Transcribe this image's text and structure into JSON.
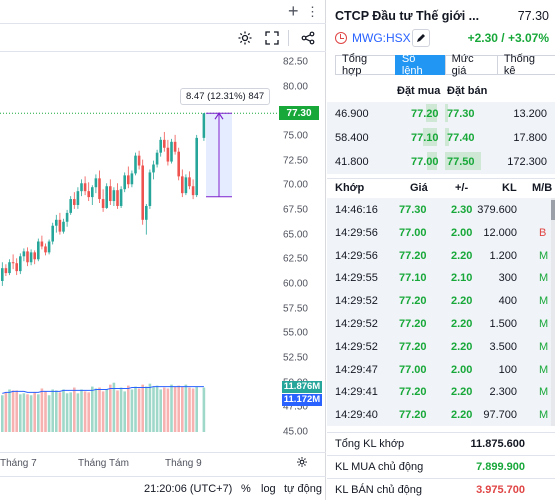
{
  "chart": {
    "toolbar_icons": [
      "settings-icon",
      "fullscreen-icon",
      "share-icon"
    ],
    "price_ticks": [
      "82.50",
      "80.00",
      "77.50",
      "75.00",
      "72.50",
      "70.00",
      "67.50",
      "65.00",
      "62.50",
      "60.00",
      "57.50",
      "55.00",
      "52.50",
      "50.00",
      "47.50",
      "45.00"
    ],
    "last_price_tag": "77.30",
    "volume_tag_1": "11.876M",
    "volume_tag_2": "11.172M",
    "measure_label": "8.47 (12.31%) 847",
    "time_labels": [
      "Tháng 7",
      "Tháng Tám",
      "Tháng 9"
    ],
    "status": {
      "clock": "21:20:06 (UTC+7)",
      "percent": "%",
      "log": "log",
      "auto": "tự động"
    },
    "colors": {
      "up": "#26a69a",
      "down": "#ef5350",
      "accent": "#2962ff",
      "price_tag": "#18a83a",
      "measure": "#7e22ce"
    }
  },
  "chart_data": {
    "type": "candlestick",
    "ylim": [
      45.0,
      83.5
    ],
    "candles": [
      [
        60.3,
        62.2,
        59.8,
        61.6
      ],
      [
        61.6,
        62.0,
        60.8,
        61.1
      ],
      [
        61.1,
        62.5,
        60.9,
        62.2
      ],
      [
        62.2,
        63.0,
        61.5,
        62.1
      ],
      [
        62.1,
        62.6,
        60.9,
        61.3
      ],
      [
        61.3,
        63.1,
        61.0,
        62.8
      ],
      [
        62.8,
        63.6,
        62.3,
        63.3
      ],
      [
        63.3,
        63.7,
        61.8,
        62.2
      ],
      [
        62.2,
        63.5,
        61.9,
        63.2
      ],
      [
        63.2,
        63.4,
        62.0,
        62.5
      ],
      [
        62.5,
        64.6,
        62.3,
        64.3
      ],
      [
        64.3,
        64.9,
        63.5,
        63.8
      ],
      [
        63.8,
        64.1,
        62.9,
        63.2
      ],
      [
        63.2,
        64.5,
        63.0,
        64.3
      ],
      [
        64.3,
        66.2,
        64.0,
        65.9
      ],
      [
        65.9,
        67.0,
        65.2,
        66.5
      ],
      [
        66.5,
        67.2,
        65.0,
        65.3
      ],
      [
        65.3,
        66.6,
        65.1,
        66.3
      ],
      [
        66.3,
        67.5,
        65.8,
        67.2
      ],
      [
        67.2,
        68.9,
        67.0,
        68.6
      ],
      [
        68.6,
        69.3,
        67.6,
        68.0
      ],
      [
        68.0,
        69.8,
        67.6,
        69.4
      ],
      [
        69.4,
        70.6,
        68.9,
        70.2
      ],
      [
        70.2,
        70.9,
        69.0,
        69.4
      ],
      [
        69.4,
        70.3,
        68.4,
        68.8
      ],
      [
        68.8,
        70.0,
        68.0,
        69.8
      ],
      [
        69.8,
        71.1,
        69.2,
        70.7
      ],
      [
        70.7,
        71.5,
        68.2,
        68.6
      ],
      [
        68.6,
        69.6,
        67.3,
        67.7
      ],
      [
        67.7,
        70.2,
        67.6,
        69.9
      ],
      [
        69.9,
        70.6,
        68.0,
        68.4
      ],
      [
        68.4,
        69.8,
        67.9,
        69.5
      ],
      [
        69.5,
        70.2,
        67.6,
        67.9
      ],
      [
        67.9,
        69.9,
        67.7,
        69.6
      ],
      [
        69.6,
        71.3,
        69.3,
        71.0
      ],
      [
        71.0,
        71.9,
        69.7,
        70.1
      ],
      [
        70.1,
        71.5,
        69.8,
        71.2
      ],
      [
        71.2,
        73.3,
        71.0,
        73.0
      ],
      [
        73.0,
        73.5,
        71.6,
        72.0
      ],
      [
        72.0,
        72.6,
        66.0,
        66.5
      ],
      [
        66.5,
        68.1,
        65.0,
        67.9
      ],
      [
        67.9,
        71.6,
        67.6,
        71.3
      ],
      [
        71.3,
        72.5,
        70.6,
        72.1
      ],
      [
        72.1,
        73.6,
        71.8,
        73.3
      ],
      [
        73.3,
        74.9,
        72.9,
        74.6
      ],
      [
        74.6,
        75.4,
        73.4,
        73.8
      ],
      [
        73.8,
        74.6,
        72.0,
        72.4
      ],
      [
        72.4,
        74.7,
        72.2,
        74.4
      ],
      [
        74.4,
        75.1,
        73.1,
        73.4
      ],
      [
        73.4,
        73.8,
        70.5,
        70.9
      ],
      [
        70.9,
        71.6,
        68.8,
        69.2
      ],
      [
        69.2,
        71.1,
        69.0,
        70.8
      ],
      [
        70.8,
        71.4,
        69.6,
        69.9
      ],
      [
        69.9,
        70.6,
        68.6,
        69.0
      ],
      [
        69.0,
        75.1,
        68.8,
        74.8
      ],
      null,
      [
        74.8,
        77.3,
        74.5,
        77.3
      ]
    ],
    "volumes": [
      38,
      41,
      44,
      43,
      43,
      39,
      40,
      39,
      38,
      41,
      39,
      45,
      42,
      38,
      44,
      43,
      41,
      44,
      40,
      41,
      46,
      40,
      44,
      42,
      41,
      47,
      45,
      46,
      42,
      44,
      49,
      51,
      43,
      46,
      42,
      48,
      44,
      47,
      45,
      49,
      47,
      50,
      47,
      48,
      44,
      46,
      45,
      49,
      47,
      48,
      47,
      49,
      46,
      45,
      47,
      0,
      46
    ],
    "volume_ma": [
      40,
      41,
      41,
      42,
      42,
      42,
      42,
      41,
      41,
      41,
      41,
      42,
      42,
      42,
      42,
      42,
      42,
      43,
      43,
      43,
      43,
      43,
      43,
      43,
      43,
      43,
      44,
      44,
      44,
      44,
      45,
      45,
      45,
      45,
      45,
      45,
      46,
      46,
      46,
      46,
      46,
      46,
      47,
      47,
      47,
      47,
      47,
      47,
      47,
      47,
      47,
      47,
      47,
      47,
      47,
      47,
      47
    ]
  },
  "side": {
    "title": "CTCP Đầu tư Thế giới ...",
    "price": "77.30",
    "code": "MWG:HSX",
    "change": "+2.30 / +3.07%",
    "tabs": [
      "Tổng hợp",
      "Sổ lệnh",
      "Mức giá",
      "Thống kê"
    ],
    "active_tab": 1,
    "ob_head_buy": "Đặt mua",
    "ob_head_sell": "Đặt bán",
    "orderbook": [
      {
        "bid_vol": "46.900",
        "bid": "77.20",
        "ask": "77.30",
        "ask_vol": "13.200",
        "buy_frac": 0.27,
        "sell_frac": 0.08
      },
      {
        "bid_vol": "58.400",
        "bid": "77.10",
        "ask": "77.40",
        "ask_vol": "17.800",
        "buy_frac": 0.34,
        "sell_frac": 0.1
      },
      {
        "bid_vol": "41.800",
        "bid": "77.00",
        "ask": "77.50",
        "ask_vol": "172.300",
        "buy_frac": 0.24,
        "sell_frac": 1.0
      }
    ],
    "trade_head": [
      "Khớp",
      "Giá",
      "+/-",
      "KL",
      "M/B"
    ],
    "trades": [
      {
        "time": "14:46:16",
        "price": "77.30",
        "chg": "2.30",
        "vol": "379.600",
        "side": ""
      },
      {
        "time": "14:29:56",
        "price": "77.00",
        "chg": "2.00",
        "vol": "12.000",
        "side": "B"
      },
      {
        "time": "14:29:56",
        "price": "77.20",
        "chg": "2.20",
        "vol": "1.200",
        "side": "M"
      },
      {
        "time": "14:29:55",
        "price": "77.10",
        "chg": "2.10",
        "vol": "300",
        "side": "M"
      },
      {
        "time": "14:29:52",
        "price": "77.20",
        "chg": "2.20",
        "vol": "400",
        "side": "M"
      },
      {
        "time": "14:29:52",
        "price": "77.20",
        "chg": "2.20",
        "vol": "1.500",
        "side": "M"
      },
      {
        "time": "14:29:52",
        "price": "77.20",
        "chg": "2.20",
        "vol": "3.500",
        "side": "M"
      },
      {
        "time": "14:29:47",
        "price": "77.00",
        "chg": "2.00",
        "vol": "100",
        "side": "M"
      },
      {
        "time": "14:29:41",
        "price": "77.20",
        "chg": "2.20",
        "vol": "2.300",
        "side": "M"
      },
      {
        "time": "14:29:40",
        "price": "77.20",
        "chg": "2.20",
        "vol": "97.700",
        "side": "M"
      }
    ],
    "summary": [
      {
        "label": "Tổng KL khớp",
        "value": "11.875.600",
        "color": "#131722"
      },
      {
        "label": "KL MUA chủ động",
        "value": "7.899.900",
        "color": "#18a83a"
      },
      {
        "label": "KL BÁN chủ động",
        "value": "3.975.700",
        "color": "#e04545"
      }
    ]
  }
}
